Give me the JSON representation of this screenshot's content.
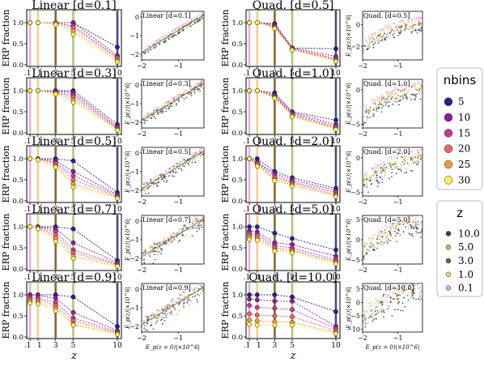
{
  "nbins_legend": {
    "title": "nbins",
    "entries": [
      {
        "label": "5",
        "color": "#2d1e8a"
      },
      {
        "label": "10",
        "color": "#8c1d9b"
      },
      {
        "label": "15",
        "color": "#c43a8e"
      },
      {
        "label": "20",
        "color": "#e8636b"
      },
      {
        "label": "25",
        "color": "#f59a37"
      },
      {
        "label": "30",
        "color": "#f4f25a"
      }
    ]
  },
  "z_legend": {
    "title": "z",
    "entries": [
      {
        "label": "10.0",
        "color": "#2d3b6a"
      },
      {
        "label": "5.0",
        "color": "#a9c06a"
      },
      {
        "label": "3.0",
        "color": "#7a5a1f"
      },
      {
        "label": "1.0",
        "color": "#f2c88a"
      },
      {
        "label": "0.1",
        "color": "#e6a6e0"
      }
    ]
  },
  "chart_data": [
    {
      "type": "line",
      "title": "Linear [d=0.1]",
      "ylabel": "ERP fraction",
      "xlabel": "",
      "x_ticks": [
        ".1",
        "1",
        "3",
        "5",
        "10"
      ],
      "y_ticks": [
        "0.0",
        "0.5",
        "1.0"
      ],
      "series": [
        {
          "name": "5",
          "y": [
            1.0,
            1.0,
            1.0,
            1.0,
            0.42
          ]
        },
        {
          "name": "10",
          "y": [
            1.0,
            1.0,
            1.0,
            1.0,
            0.22
          ]
        },
        {
          "name": "15",
          "y": [
            1.0,
            1.0,
            1.0,
            0.92,
            0.18
          ]
        },
        {
          "name": "20",
          "y": [
            1.0,
            1.0,
            1.0,
            0.88,
            0.15
          ]
        },
        {
          "name": "25",
          "y": [
            1.0,
            1.0,
            0.98,
            0.8,
            0.1
          ]
        },
        {
          "name": "30",
          "y": [
            1.0,
            1.0,
            0.95,
            0.72,
            0.07
          ]
        }
      ]
    },
    {
      "type": "line",
      "title": "Quad. [d=0.5]",
      "ylabel": "ERP fraction",
      "xlabel": "",
      "x_ticks": [
        ".1",
        "1",
        "3",
        "5",
        "10"
      ],
      "y_ticks": [
        "0.0",
        "0.5",
        "1.0"
      ],
      "series": [
        {
          "name": "5",
          "y": [
            1.0,
            1.0,
            0.98,
            0.4,
            0.38
          ]
        },
        {
          "name": "10",
          "y": [
            1.0,
            1.0,
            0.95,
            0.4,
            0.2
          ]
        },
        {
          "name": "15",
          "y": [
            1.0,
            1.0,
            0.92,
            0.38,
            0.15
          ]
        },
        {
          "name": "20",
          "y": [
            1.0,
            1.0,
            0.9,
            0.38,
            0.12
          ]
        },
        {
          "name": "25",
          "y": [
            1.0,
            1.0,
            0.88,
            0.36,
            0.1
          ]
        },
        {
          "name": "30",
          "y": [
            1.0,
            1.0,
            0.86,
            0.35,
            0.08
          ]
        }
      ]
    },
    {
      "type": "line",
      "title": "Linear [d=0.3]",
      "ylabel": "ERP fraction",
      "xlabel": "",
      "x_ticks": [
        ".1",
        "1",
        "3",
        "5",
        "10"
      ],
      "y_ticks": [
        "0.0",
        "0.5",
        "1.0"
      ],
      "series": [
        {
          "name": "5",
          "y": [
            1.0,
            1.0,
            1.0,
            1.0,
            0.2
          ]
        },
        {
          "name": "10",
          "y": [
            1.0,
            1.0,
            1.0,
            0.95,
            0.15
          ]
        },
        {
          "name": "15",
          "y": [
            1.0,
            1.0,
            0.97,
            0.9,
            0.12
          ]
        },
        {
          "name": "20",
          "y": [
            1.0,
            1.0,
            0.95,
            0.85,
            0.1
          ]
        },
        {
          "name": "25",
          "y": [
            1.0,
            1.0,
            0.94,
            0.78,
            0.08
          ]
        },
        {
          "name": "30",
          "y": [
            1.0,
            1.0,
            0.92,
            0.72,
            0.06
          ]
        }
      ]
    },
    {
      "type": "line",
      "title": "Quad. [d=1.0]",
      "ylabel": "ERP fraction",
      "xlabel": "",
      "x_ticks": [
        ".1",
        "1",
        "3",
        "5",
        "10"
      ],
      "y_ticks": [
        "0.0",
        "0.5",
        "1.0"
      ],
      "series": [
        {
          "name": "5",
          "y": [
            1.0,
            1.0,
            0.95,
            0.5,
            0.3
          ]
        },
        {
          "name": "10",
          "y": [
            1.0,
            1.0,
            0.9,
            0.48,
            0.2
          ]
        },
        {
          "name": "15",
          "y": [
            1.0,
            1.0,
            0.88,
            0.45,
            0.15
          ]
        },
        {
          "name": "20",
          "y": [
            1.0,
            1.0,
            0.86,
            0.42,
            0.12
          ]
        },
        {
          "name": "25",
          "y": [
            1.0,
            1.0,
            0.84,
            0.4,
            0.1
          ]
        },
        {
          "name": "30",
          "y": [
            1.0,
            1.0,
            0.82,
            0.38,
            0.08
          ]
        }
      ]
    },
    {
      "type": "line",
      "title": "Linear [d=0.5]",
      "ylabel": "ERP fraction",
      "xlabel": "",
      "x_ticks": [
        ".1",
        "1",
        "3",
        "5",
        "10"
      ],
      "y_ticks": [
        "0.0",
        "0.5",
        "1.0"
      ],
      "series": [
        {
          "name": "5",
          "y": [
            1.0,
            1.0,
            1.0,
            0.95,
            0.2
          ]
        },
        {
          "name": "10",
          "y": [
            1.0,
            1.0,
            0.95,
            0.7,
            0.15
          ]
        },
        {
          "name": "15",
          "y": [
            1.0,
            1.0,
            0.9,
            0.6,
            0.12
          ]
        },
        {
          "name": "20",
          "y": [
            1.0,
            1.0,
            0.88,
            0.5,
            0.1
          ]
        },
        {
          "name": "25",
          "y": [
            1.0,
            0.98,
            0.82,
            0.4,
            0.08
          ]
        },
        {
          "name": "30",
          "y": [
            1.0,
            0.97,
            0.8,
            0.32,
            0.06
          ]
        }
      ]
    },
    {
      "type": "line",
      "title": "Quad. [d=2.0]",
      "ylabel": "ERP fraction",
      "xlabel": "",
      "x_ticks": [
        ".1",
        "1",
        "3",
        "5",
        "10"
      ],
      "y_ticks": [
        "0.0",
        "0.5",
        "1.0"
      ],
      "series": [
        {
          "name": "5",
          "y": [
            1.0,
            1.0,
            0.7,
            0.55,
            0.3
          ]
        },
        {
          "name": "10",
          "y": [
            1.0,
            0.92,
            0.65,
            0.5,
            0.25
          ]
        },
        {
          "name": "15",
          "y": [
            1.0,
            0.9,
            0.6,
            0.45,
            0.2
          ]
        },
        {
          "name": "20",
          "y": [
            1.0,
            0.88,
            0.55,
            0.42,
            0.15
          ]
        },
        {
          "name": "25",
          "y": [
            1.0,
            0.85,
            0.5,
            0.38,
            0.12
          ]
        },
        {
          "name": "30",
          "y": [
            1.0,
            0.82,
            0.48,
            0.35,
            0.1
          ]
        }
      ]
    },
    {
      "type": "line",
      "title": "Linear [d=0.7]",
      "ylabel": "ERP fraction",
      "xlabel": "",
      "x_ticks": [
        ".1",
        "1",
        "3",
        "5",
        "10"
      ],
      "y_ticks": [
        "0.0",
        "0.5",
        "1.0"
      ],
      "series": [
        {
          "name": "5",
          "y": [
            1.0,
            1.0,
            1.0,
            0.95,
            0.2
          ]
        },
        {
          "name": "10",
          "y": [
            1.0,
            1.0,
            0.95,
            0.62,
            0.15
          ]
        },
        {
          "name": "15",
          "y": [
            1.0,
            1.0,
            0.88,
            0.45,
            0.12
          ]
        },
        {
          "name": "20",
          "y": [
            1.0,
            0.98,
            0.8,
            0.38,
            0.1
          ]
        },
        {
          "name": "25",
          "y": [
            1.0,
            0.97,
            0.72,
            0.3,
            0.08
          ]
        },
        {
          "name": "30",
          "y": [
            1.0,
            0.95,
            0.65,
            0.25,
            0.06
          ]
        }
      ]
    },
    {
      "type": "line",
      "title": "Quad. [d=5.0]",
      "ylabel": "ERP fraction",
      "xlabel": "",
      "x_ticks": [
        ".1",
        "1",
        "3",
        "5",
        "10"
      ],
      "y_ticks": [
        "0.0",
        "0.5",
        "1.0"
      ],
      "series": [
        {
          "name": "5",
          "y": [
            1.0,
            1.0,
            0.85,
            0.72,
            0.45
          ]
        },
        {
          "name": "10",
          "y": [
            0.9,
            0.88,
            0.62,
            0.58,
            0.3
          ]
        },
        {
          "name": "15",
          "y": [
            0.85,
            0.82,
            0.55,
            0.5,
            0.22
          ]
        },
        {
          "name": "20",
          "y": [
            0.8,
            0.78,
            0.5,
            0.45,
            0.18
          ]
        },
        {
          "name": "25",
          "y": [
            0.75,
            0.72,
            0.45,
            0.42,
            0.15
          ]
        },
        {
          "name": "30",
          "y": [
            0.7,
            0.68,
            0.42,
            0.38,
            0.12
          ]
        }
      ]
    },
    {
      "type": "line",
      "title": "Linear [d=0.9]",
      "ylabel": "ERP fraction",
      "xlabel": "z",
      "x_ticks": [
        ".1",
        "1",
        "3",
        "5",
        "10"
      ],
      "y_ticks": [
        "0.0",
        "0.5",
        "1.0"
      ],
      "series": [
        {
          "name": "5",
          "y": [
            1.0,
            1.0,
            1.0,
            0.95,
            0.25
          ]
        },
        {
          "name": "10",
          "y": [
            1.0,
            0.98,
            0.92,
            0.58,
            0.15
          ]
        },
        {
          "name": "15",
          "y": [
            0.95,
            0.92,
            0.82,
            0.45,
            0.12
          ]
        },
        {
          "name": "20",
          "y": [
            0.9,
            0.88,
            0.75,
            0.38,
            0.1
          ]
        },
        {
          "name": "25",
          "y": [
            0.85,
            0.82,
            0.68,
            0.3,
            0.08
          ]
        },
        {
          "name": "30",
          "y": [
            0.8,
            0.78,
            0.62,
            0.28,
            0.06
          ]
        }
      ]
    },
    {
      "type": "line",
      "title": "Quad. [d=10.0]",
      "ylabel": "ERP fraction",
      "xlabel": "z",
      "x_ticks": [
        ".1",
        "1",
        "3",
        "5",
        "10"
      ],
      "y_ticks": [
        "0.0",
        "0.5",
        "1.0"
      ],
      "series": [
        {
          "name": "5",
          "y": [
            1.0,
            1.0,
            1.0,
            0.95,
            0.6
          ]
        },
        {
          "name": "10",
          "y": [
            0.9,
            0.88,
            0.85,
            0.85,
            0.25
          ]
        },
        {
          "name": "15",
          "y": [
            0.75,
            0.7,
            0.68,
            0.65,
            0.2
          ]
        },
        {
          "name": "20",
          "y": [
            0.55,
            0.52,
            0.5,
            0.48,
            0.15
          ]
        },
        {
          "name": "25",
          "y": [
            0.4,
            0.38,
            0.36,
            0.35,
            0.1
          ]
        },
        {
          "name": "30",
          "y": [
            0.3,
            0.28,
            0.28,
            0.28,
            0.08
          ]
        }
      ]
    },
    {
      "type": "scatter",
      "title": "Linear [d=0.1]",
      "ylabel": "",
      "xlabel": "",
      "x_ticks": [
        "−2",
        "−1"
      ],
      "y_ticks": [
        "−2",
        "−1",
        "0"
      ],
      "xlim": [
        -2,
        -0.3
      ],
      "ylim": [
        -2.3,
        0.3
      ],
      "curve": "linear",
      "slope": 0.78,
      "spread": 0.03
    },
    {
      "type": "scatter",
      "title": "Quad. [d=0.5]",
      "ylabel": "E_p(z)|×10^6|",
      "xlabel": "",
      "x_ticks": [
        "−2",
        "−1"
      ],
      "y_ticks": [
        "−2",
        "0"
      ],
      "xlim": [
        -2,
        -0.3
      ],
      "ylim": [
        -3.2,
        1.2
      ],
      "curve": "quad",
      "slope": 0.55,
      "spread": 0.1
    },
    {
      "type": "scatter",
      "title": "Linear [d=0.3]",
      "ylabel": "E_p(z)|×10^6|",
      "xlabel": "",
      "x_ticks": [
        "−2",
        "−1"
      ],
      "y_ticks": [
        "−2",
        "−1",
        "0"
      ],
      "xlim": [
        -2,
        -0.3
      ],
      "ylim": [
        -2.3,
        0.3
      ],
      "curve": "linear",
      "slope": 0.78,
      "spread": 0.12
    },
    {
      "type": "scatter",
      "title": "Quad. [d=1.0]",
      "ylabel": "E_p(z)|×10^6|",
      "xlabel": "",
      "x_ticks": [
        "−2",
        "−1"
      ],
      "y_ticks": [
        "−5",
        "0"
      ],
      "xlim": [
        -2,
        -0.3
      ],
      "ylim": [
        -5.5,
        1.5
      ],
      "curve": "quad",
      "slope": 0.6,
      "spread": 0.18
    },
    {
      "type": "scatter",
      "title": "Linear [d=0.5]",
      "ylabel": "E_p(z)|×10^6|",
      "xlabel": "",
      "x_ticks": [
        "−2",
        "−1"
      ],
      "y_ticks": [
        "−2",
        "−1",
        "0"
      ],
      "xlim": [
        -2,
        -0.3
      ],
      "ylim": [
        -2.3,
        0.3
      ],
      "curve": "linear",
      "slope": 0.78,
      "spread": 0.2
    },
    {
      "type": "scatter",
      "title": "Quad. [d=2.0]",
      "ylabel": "E_p(z)|×10^6|",
      "xlabel": "",
      "x_ticks": [
        "−2",
        "−1"
      ],
      "y_ticks": [
        "−5",
        "0"
      ],
      "xlim": [
        -2,
        -0.3
      ],
      "ylim": [
        -5.5,
        1.5
      ],
      "curve": "quad",
      "slope": 0.6,
      "spread": 0.26
    },
    {
      "type": "scatter",
      "title": "Linear [d=0.7]",
      "ylabel": "E_p(z)|×10^6|",
      "xlabel": "",
      "x_ticks": [
        "−2",
        "−1"
      ],
      "y_ticks": [
        "−2",
        "−1",
        "0"
      ],
      "xlim": [
        -2,
        -0.3
      ],
      "ylim": [
        -2.3,
        0.3
      ],
      "curve": "linear",
      "slope": 0.78,
      "spread": 0.28
    },
    {
      "type": "scatter",
      "title": "Quad. [d=5.0]",
      "ylabel": "E_p(z)|×10^6|",
      "xlabel": "",
      "x_ticks": [
        "−2",
        "−1"
      ],
      "y_ticks": [
        "−5",
        "0",
        "5"
      ],
      "xlim": [
        -2,
        -0.3
      ],
      "ylim": [
        -6,
        6
      ],
      "curve": "quad",
      "slope": 0.65,
      "spread": 0.32
    },
    {
      "type": "scatter",
      "title": "Linear [d=0.9]",
      "ylabel": "E_p(z)|×10^6|",
      "xlabel": "E_p(z = 0)|×10^6|",
      "x_ticks": [
        "−2",
        "−1"
      ],
      "y_ticks": [
        "−2",
        "−1",
        "0"
      ],
      "xlim": [
        -2,
        -0.3
      ],
      "ylim": [
        -2.3,
        0.3
      ],
      "curve": "linear",
      "slope": 0.78,
      "spread": 0.34
    },
    {
      "type": "scatter",
      "title": "Quad. [d=10.0]",
      "ylabel": "E_p(z)|×10^6|",
      "xlabel": "E_p(z = 0)|×10^6|",
      "x_ticks": [
        "−2",
        "−1"
      ],
      "y_ticks": [
        "−10",
        "−5",
        "0",
        "5"
      ],
      "xlim": [
        -2,
        -0.3
      ],
      "ylim": [
        -11,
        7
      ],
      "curve": "quad",
      "slope": 0.7,
      "spread": 0.4
    }
  ]
}
